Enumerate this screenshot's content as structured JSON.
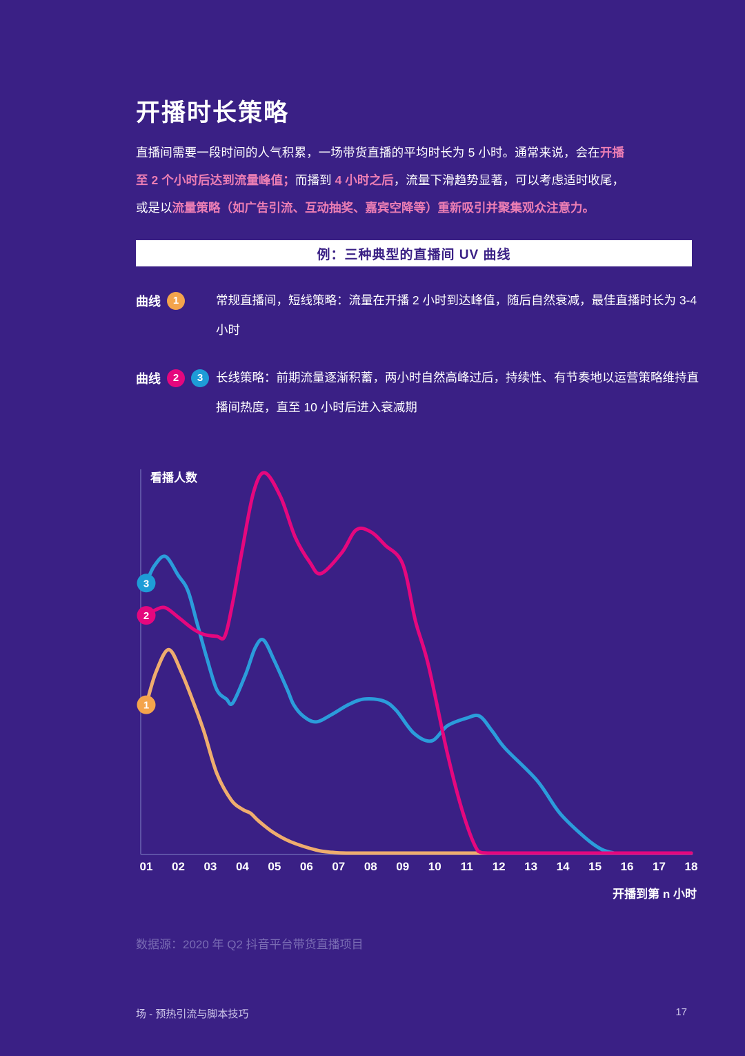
{
  "page": {
    "title": "开播时长策略",
    "datasource": "数据源：2020 年 Q2 抖音平台带货直播项目",
    "footer": "场 - 预热引流与脚本技巧",
    "page_number": "17",
    "bg_color": "#3A2085",
    "highlight_color": "#EC7EB4"
  },
  "paragraph": {
    "segments": [
      {
        "text": "直播间需要一段时间的人气积累，一场带货直播的平均时长为 5 小时。通常来说，会在",
        "hl": false
      },
      {
        "text": "开播至 2 个小时后达到流量峰值；",
        "hl": true
      },
      {
        "text": "而播到 ",
        "hl": false
      },
      {
        "text": "4 小时之后",
        "hl": true
      },
      {
        "text": "，流量下滑趋势显著，可以考虑适时收尾，或是以",
        "hl": false
      },
      {
        "text": "流量策略（如广告引流、互动抽奖、嘉宾空降等）重新吸引并聚集观众注意力。",
        "hl": true
      }
    ]
  },
  "banner": {
    "label": "例：三种典型的直播间 UV 曲线"
  },
  "legend": {
    "rows": [
      {
        "label": "曲线",
        "badges": [
          {
            "num": "1",
            "color": "#F4A44C"
          }
        ],
        "text": "常规直播间，短线策略：流量在开播 2 小时到达峰值，随后自然衰减，最佳直播时长为 3-4 小时"
      },
      {
        "label": "曲线",
        "badges": [
          {
            "num": "2",
            "color": "#E5077E"
          },
          {
            "num": "3",
            "color": "#1E9CD7"
          }
        ],
        "text": "长线策略：前期流量逐渐积蓄，两小时自然高峰过后，持续性、有节奏地以运营策略维持直播间热度，直至 10 小时后进入衰减期"
      }
    ]
  },
  "chart_data": {
    "type": "line",
    "title": "三种典型的直播间 UV 曲线",
    "ylabel": "看播人数",
    "xlabel": "开播到第 n 小时",
    "x_ticks": [
      "01",
      "02",
      "03",
      "04",
      "05",
      "06",
      "07",
      "08",
      "09",
      "10",
      "11",
      "12",
      "13",
      "14",
      "15",
      "16",
      "17",
      "18"
    ],
    "xlim": [
      1,
      18
    ],
    "ylim": [
      0,
      100
    ],
    "grid": false,
    "legend_position": "left-markers",
    "axis_color": "#5E52A6",
    "series": [
      {
        "name": "曲线1 常规直播间（短线策略）",
        "badge": "1",
        "color": "#EFAD6E",
        "badge_color": "#F4A44C",
        "points": [
          [
            1,
            39
          ],
          [
            1.3,
            47.5
          ],
          [
            1.7,
            53.5
          ],
          [
            2.1,
            47.5
          ],
          [
            2.5,
            39
          ],
          [
            2.8,
            32
          ],
          [
            3.2,
            21
          ],
          [
            3.65,
            14
          ],
          [
            4.0,
            11.5
          ],
          [
            4.25,
            10.5
          ],
          [
            4.5,
            8.5
          ],
          [
            4.95,
            5.5
          ],
          [
            5.5,
            3
          ],
          [
            6.3,
            0.8
          ],
          [
            6.8,
            0.2
          ],
          [
            7.3,
            0
          ],
          [
            9,
            0
          ],
          [
            11,
            0
          ],
          [
            13,
            0
          ],
          [
            15,
            0
          ],
          [
            17,
            0
          ],
          [
            18,
            0
          ]
        ]
      },
      {
        "name": "曲线3 长线策略（运营维持）",
        "badge": "3",
        "color": "#2B9CDB",
        "badge_color": "#1E9CD7",
        "points": [
          [
            1,
            71
          ],
          [
            1.25,
            75.5
          ],
          [
            1.6,
            78
          ],
          [
            2.0,
            73
          ],
          [
            2.3,
            69
          ],
          [
            2.6,
            60
          ],
          [
            2.9,
            51
          ],
          [
            3.2,
            43
          ],
          [
            3.5,
            40.5
          ],
          [
            3.7,
            39.5
          ],
          [
            4.1,
            47
          ],
          [
            4.4,
            54
          ],
          [
            4.66,
            56
          ],
          [
            5.0,
            50.5
          ],
          [
            5.4,
            43
          ],
          [
            5.6,
            39
          ],
          [
            5.9,
            36
          ],
          [
            6.3,
            34.5
          ],
          [
            6.8,
            36.5
          ],
          [
            7.3,
            39
          ],
          [
            7.8,
            40.5
          ],
          [
            8.4,
            40
          ],
          [
            8.8,
            37.5
          ],
          [
            9.35,
            31.5
          ],
          [
            9.9,
            29.5
          ],
          [
            10.4,
            33.5
          ],
          [
            11.0,
            35.5
          ],
          [
            11.4,
            36
          ],
          [
            11.8,
            32
          ],
          [
            12.2,
            27.5
          ],
          [
            13.2,
            19
          ],
          [
            13.9,
            10.5
          ],
          [
            14.7,
            4
          ],
          [
            15.2,
            1
          ],
          [
            15.6,
            0
          ]
        ]
      },
      {
        "name": "曲线2 长线策略（运营维持）",
        "badge": "2",
        "color": "#E5077E",
        "badge_color": "#E5077E",
        "points": [
          [
            1,
            62.5
          ],
          [
            1.3,
            64
          ],
          [
            1.6,
            64.5
          ],
          [
            2.0,
            62
          ],
          [
            2.45,
            59
          ],
          [
            2.8,
            57.5
          ],
          [
            3.2,
            57
          ],
          [
            3.45,
            57
          ],
          [
            3.7,
            66
          ],
          [
            4.0,
            80
          ],
          [
            4.35,
            95
          ],
          [
            4.7,
            100
          ],
          [
            5.2,
            93.5
          ],
          [
            5.65,
            83
          ],
          [
            6.1,
            76.5
          ],
          [
            6.45,
            73.5
          ],
          [
            7.1,
            79
          ],
          [
            7.55,
            85
          ],
          [
            8.0,
            84.5
          ],
          [
            8.45,
            81
          ],
          [
            9.0,
            76
          ],
          [
            9.4,
            61
          ],
          [
            9.8,
            49.5
          ],
          [
            10.4,
            26
          ],
          [
            10.9,
            10
          ],
          [
            11.35,
            0.5
          ],
          [
            11.7,
            0
          ],
          [
            13,
            0
          ],
          [
            15,
            0
          ],
          [
            17,
            0
          ],
          [
            18,
            0
          ]
        ]
      }
    ]
  }
}
